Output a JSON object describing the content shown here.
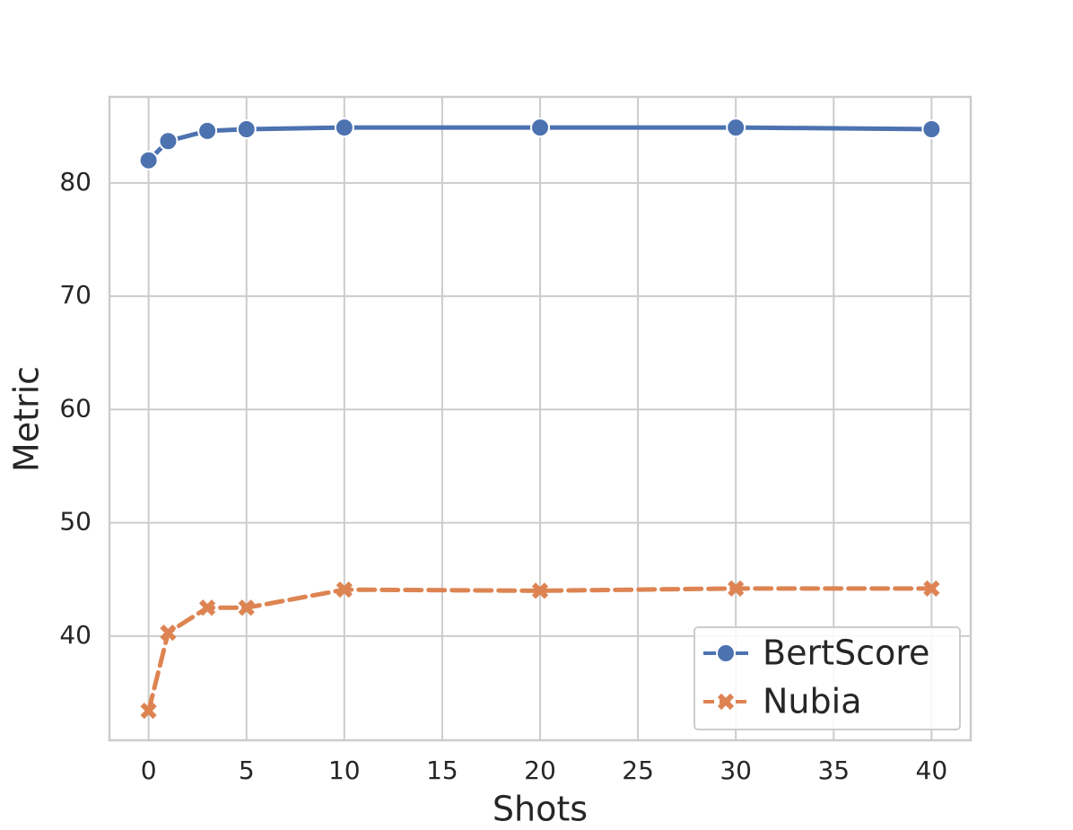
{
  "chart_data": {
    "type": "line",
    "x_label": "Shots",
    "y_label": "Metric",
    "x": [
      0,
      1,
      3,
      5,
      10,
      20,
      30,
      40
    ],
    "series": [
      {
        "name": "BertScore",
        "color": "#4c72b0",
        "linestyle": "solid",
        "marker": "circle",
        "values": [
          82.0,
          83.7,
          84.6,
          84.75,
          84.9,
          84.9,
          84.9,
          84.75
        ]
      },
      {
        "name": "Nubia",
        "color": "#dd8452",
        "linestyle": "dashed",
        "marker": "x",
        "values": [
          33.4,
          40.3,
          42.5,
          42.5,
          44.1,
          44.0,
          44.2,
          44.2
        ]
      }
    ],
    "xlim": [
      -2,
      42
    ],
    "xticks": [
      0,
      5,
      10,
      15,
      20,
      25,
      30,
      35,
      40
    ],
    "ylim": [
      30.8,
      87.6
    ],
    "yticks": [
      40,
      50,
      60,
      70,
      80
    ],
    "grid": true,
    "legend": "lower right"
  }
}
